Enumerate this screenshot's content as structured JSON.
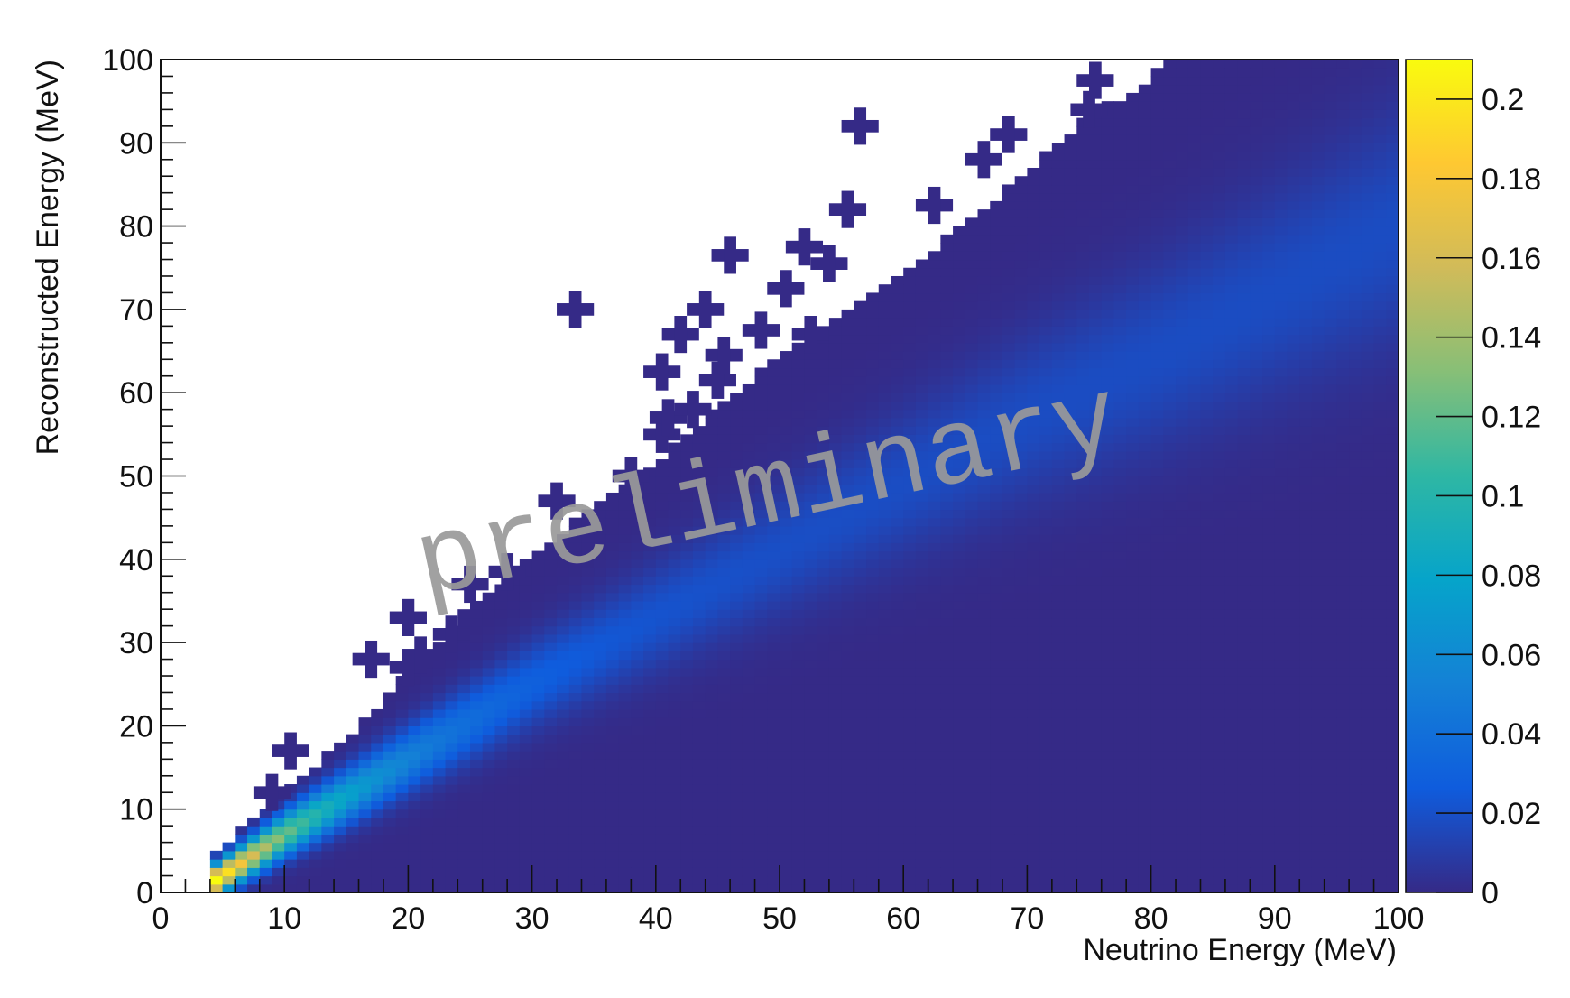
{
  "chart_data": {
    "type": "heatmap",
    "title": "",
    "xlabel": "Neutrino Energy (MeV)",
    "ylabel": "Reconstructed Energy (MeV)",
    "xlim": [
      0,
      100
    ],
    "ylim": [
      0,
      100
    ],
    "x_ticks": [
      "0",
      "10",
      "20",
      "30",
      "40",
      "50",
      "60",
      "70",
      "80",
      "90",
      "100"
    ],
    "y_ticks": [
      "0",
      "10",
      "20",
      "30",
      "40",
      "50",
      "60",
      "70",
      "80",
      "90",
      "100"
    ],
    "colorbar": {
      "range": [
        0,
        0.21
      ],
      "ticks": [
        "0",
        "0.02",
        "0.04",
        "0.06",
        "0.08",
        "0.1",
        "0.12",
        "0.14",
        "0.16",
        "0.18",
        "0.2"
      ],
      "tick_values": [
        0,
        0.02,
        0.04,
        0.06,
        0.08,
        0.1,
        0.12,
        0.14,
        0.16,
        0.18,
        0.2
      ],
      "colors": [
        "#352a87",
        "#0f5cdd",
        "#1481d6",
        "#06a4ca",
        "#2eb7a4",
        "#87bf77",
        "#d1bb59",
        "#fec832",
        "#f9fb0e"
      ]
    },
    "distribution": {
      "x_threshold": 4,
      "peak_ridge": [
        [
          4,
          1
        ],
        [
          10,
          7
        ],
        [
          20,
          16
        ],
        [
          30,
          25
        ],
        [
          40,
          33
        ],
        [
          50,
          41
        ],
        [
          60,
          49
        ],
        [
          70,
          57
        ],
        [
          80,
          64
        ],
        [
          90,
          72
        ],
        [
          100,
          80
        ]
      ],
      "upper_edge": [
        [
          4,
          4
        ],
        [
          10,
          12
        ],
        [
          15,
          18
        ],
        [
          20,
          26
        ],
        [
          25,
          34
        ],
        [
          30,
          40
        ],
        [
          35,
          46
        ],
        [
          40,
          51
        ],
        [
          45,
          58
        ],
        [
          50,
          64
        ],
        [
          55,
          69
        ],
        [
          60,
          74
        ],
        [
          65,
          80
        ],
        [
          70,
          86
        ],
        [
          75,
          93
        ],
        [
          80,
          97
        ],
        [
          81,
          100
        ]
      ],
      "isolated_bins": [
        [
          10.5,
          17
        ],
        [
          9,
          12
        ],
        [
          17,
          28
        ],
        [
          20,
          27
        ],
        [
          20,
          33
        ],
        [
          21,
          28.5
        ],
        [
          23.5,
          31
        ],
        [
          25,
          37
        ],
        [
          28,
          38.5
        ],
        [
          32,
          47
        ],
        [
          33.5,
          70
        ],
        [
          38,
          50
        ],
        [
          40.5,
          55
        ],
        [
          40.5,
          62.5
        ],
        [
          41,
          57
        ],
        [
          42,
          67
        ],
        [
          43,
          58
        ],
        [
          44,
          70
        ],
        [
          45,
          61.5
        ],
        [
          45.5,
          64.5
        ],
        [
          46,
          76.5
        ],
        [
          48.5,
          67.5
        ],
        [
          50.5,
          72.5
        ],
        [
          52,
          77.5
        ],
        [
          52.5,
          67
        ],
        [
          54,
          75.5
        ],
        [
          55.5,
          82
        ],
        [
          56.5,
          92
        ],
        [
          62.5,
          82.5
        ],
        [
          66.5,
          88
        ],
        [
          68.5,
          91
        ],
        [
          75,
          94
        ],
        [
          75.5,
          97.5
        ]
      ]
    },
    "grid": false,
    "legend": "none",
    "annotations": [
      "preliminary"
    ]
  }
}
